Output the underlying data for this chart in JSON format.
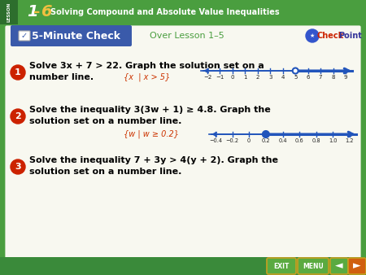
{
  "bg_color": "#ffffff",
  "outer_bg": "#4a9e3f",
  "header_bg": "#4a9e3f",
  "header_dark": "#2d6e2d",
  "lesson_stripe": "#2d6e2d",
  "check_bg": "#3a5aaa",
  "check_label": "5-Minute Check",
  "over_lesson": "Over Lesson 1–5",
  "q1_text1": "Solve 3x + 7 > 22. Graph the solution set on a",
  "q1_text2": "number line.",
  "q1_answer": "{x  | x > 5}",
  "q1_ticks": [
    -2,
    -1,
    0,
    1,
    2,
    3,
    4,
    5,
    6,
    7,
    8,
    9
  ],
  "q1_tick_labels": [
    "−2",
    "−1",
    "0",
    "1",
    "2",
    "3",
    "4",
    "5",
    "6",
    "7",
    "8",
    "9"
  ],
  "q1_open_circle": 5,
  "q2_text1": "Solve the inequality 3(3w + 1) ≥ 4.8. Graph the",
  "q2_text2": "solution set on a number line.",
  "q2_answer": "{w | w ≥ 0.2}",
  "q2_ticks": [
    -0.4,
    -0.2,
    0,
    0.2,
    0.4,
    0.6,
    0.8,
    1.0,
    1.2
  ],
  "q2_tick_labels": [
    "−0.4",
    "−0.2",
    "0",
    "0.2",
    "0.4",
    "0.6",
    "0.8",
    "1.0",
    "1.2"
  ],
  "q2_closed_circle": 0.2,
  "q3_text1": "Solve the inequality 7 + 3y > 4(y + 2). Graph the",
  "q3_text2": "solution set on a number line.",
  "answer_color": "#cc3300",
  "line_color": "#2255bb",
  "tick_color": "#222222",
  "q_badge_color": "#cc2200",
  "footer_bg": "#3a8a3a",
  "footer_btn_bg": "#4a9e3f",
  "footer_btn_edge": "#c8a020",
  "white": "#ffffff",
  "inner_bg": "#f8f8f0",
  "green_border": "#4a9e3f"
}
